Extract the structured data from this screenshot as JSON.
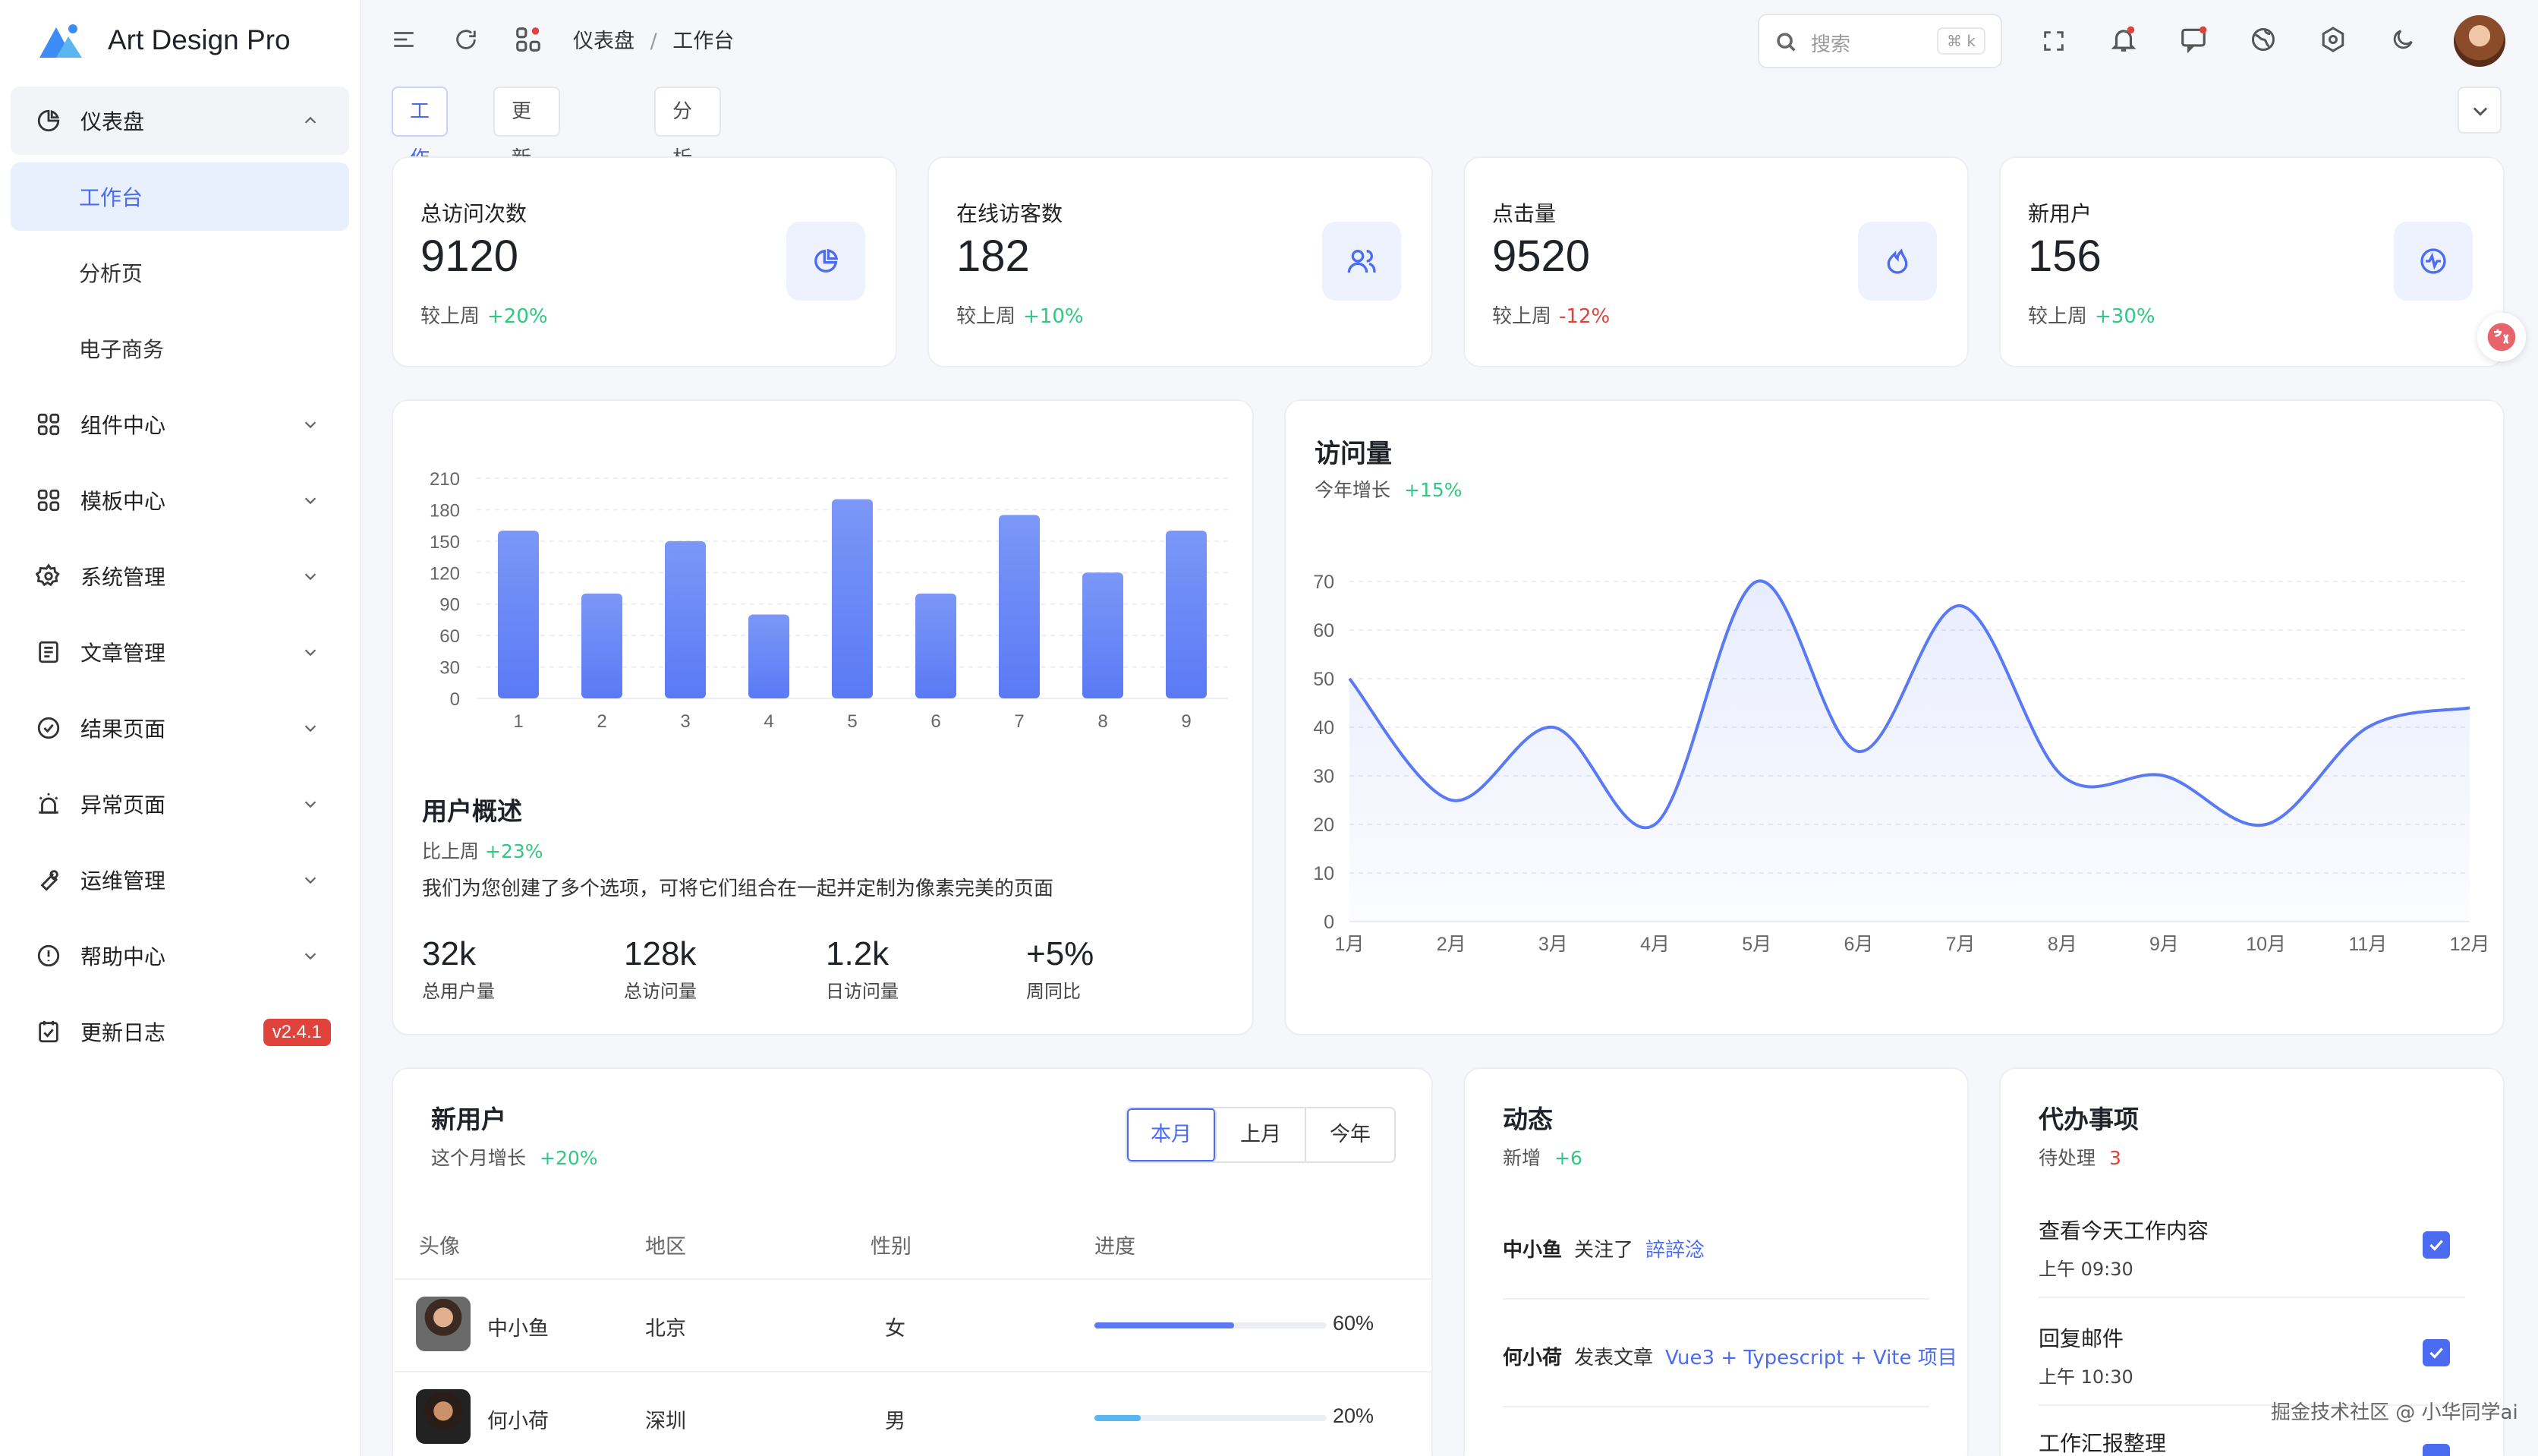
{
  "app": {
    "name": "Art Design Pro",
    "accent": "#4b6cf1"
  },
  "sidebar": {
    "items": [
      {
        "label": "仪表盘",
        "icon": "dashboard-icon",
        "open": true,
        "children": [
          {
            "label": "工作台",
            "active": true
          },
          {
            "label": "分析页"
          },
          {
            "label": "电子商务"
          }
        ]
      },
      {
        "label": "组件中心",
        "icon": "grid-icon"
      },
      {
        "label": "模板中心",
        "icon": "template-icon"
      },
      {
        "label": "系统管理",
        "icon": "gear-icon"
      },
      {
        "label": "文章管理",
        "icon": "article-icon"
      },
      {
        "label": "结果页面",
        "icon": "check-circle-icon"
      },
      {
        "label": "异常页面",
        "icon": "alarm-icon"
      },
      {
        "label": "运维管理",
        "icon": "wrench-icon"
      },
      {
        "label": "帮助中心",
        "icon": "help-icon"
      },
      {
        "label": "更新日志",
        "icon": "log-icon",
        "badge": "v2.4.1"
      }
    ]
  },
  "topbar": {
    "breadcrumb": [
      "仪表盘",
      "工作台"
    ],
    "separator": "/",
    "search": {
      "placeholder": "搜索",
      "shortcut": "⌘ k"
    }
  },
  "tabs": [
    {
      "label": "工作台",
      "active": true,
      "closable": false
    },
    {
      "label": "更新日志",
      "closable": true
    },
    {
      "label": "分析页",
      "closable": true
    }
  ],
  "stats": [
    {
      "label": "总访问次数",
      "value": "9120",
      "compare_label": "较上周",
      "delta": "+20%",
      "trend": "up",
      "icon": "pie-chart-icon"
    },
    {
      "label": "在线访客数",
      "value": "182",
      "compare_label": "较上周",
      "delta": "+10%",
      "trend": "up",
      "icon": "users-icon"
    },
    {
      "label": "点击量",
      "value": "9520",
      "compare_label": "较上周",
      "delta": "-12%",
      "trend": "down",
      "icon": "flame-icon"
    },
    {
      "label": "新用户",
      "value": "156",
      "compare_label": "较上周",
      "delta": "+30%",
      "trend": "up",
      "icon": "activity-icon"
    }
  ],
  "overview": {
    "title": "用户概述",
    "compare_label": "比上周",
    "delta": "+23%",
    "description": "我们为您创建了多个选项，可将它们组合在一起并定制为像素完美的页面",
    "metrics": [
      {
        "value": "32k",
        "label": "总用户量"
      },
      {
        "value": "128k",
        "label": "总访问量"
      },
      {
        "value": "1.2k",
        "label": "日访问量"
      },
      {
        "value": "+5%",
        "label": "周同比"
      }
    ]
  },
  "visits": {
    "title": "访问量",
    "sub_label": "今年增长",
    "delta": "+15%"
  },
  "chart_data": [
    {
      "type": "bar",
      "title": "",
      "categories": [
        "1",
        "2",
        "3",
        "4",
        "5",
        "6",
        "7",
        "8",
        "9"
      ],
      "values": [
        160,
        100,
        150,
        80,
        190,
        100,
        175,
        120,
        160
      ],
      "yticks": [
        0,
        30,
        60,
        90,
        120,
        150,
        180,
        210
      ],
      "ylim": [
        0,
        210
      ],
      "grid": true,
      "color": "#5a7af5"
    },
    {
      "type": "area",
      "title": "访问量",
      "categories": [
        "1月",
        "2月",
        "3月",
        "4月",
        "5月",
        "6月",
        "7月",
        "8月",
        "9月",
        "10月",
        "11月",
        "12月"
      ],
      "values": [
        50,
        25,
        40,
        20,
        70,
        35,
        65,
        30,
        30,
        20,
        40,
        44
      ],
      "yticks": [
        0,
        10,
        20,
        30,
        40,
        50,
        60,
        70
      ],
      "ylim": [
        0,
        70
      ],
      "grid": true,
      "color": "#5a7af5"
    }
  ],
  "new_users": {
    "title": "新用户",
    "sub_label": "这个月增长",
    "delta": "+20%",
    "periods": [
      "本月",
      "上月",
      "今年"
    ],
    "active_period": "本月",
    "columns": [
      "头像",
      "地区",
      "性别",
      "进度"
    ],
    "rows": [
      {
        "name": "中小鱼",
        "region": "北京",
        "gender": "女",
        "progress": 60,
        "progress_label": "60%",
        "color": "#5a7af5"
      },
      {
        "name": "何小荷",
        "region": "深圳",
        "gender": "男",
        "progress": 20,
        "progress_label": "20%",
        "color": "#5ab6f0"
      }
    ]
  },
  "activity": {
    "title": "动态",
    "sub_label": "新增",
    "delta": "+6",
    "items": [
      {
        "user": "中小鱼",
        "action": "关注了",
        "target": "誶誶淰"
      },
      {
        "user": "何小荷",
        "action": "发表文章",
        "target": "Vue3 + Typescript + Vite 项目"
      }
    ]
  },
  "todo": {
    "title": "代办事项",
    "sub_label": "待处理",
    "count": "3",
    "items": [
      {
        "title": "查看今天工作内容",
        "time": "上午 09:30",
        "done": true
      },
      {
        "title": "回复邮件",
        "time": "上午 10:30",
        "done": true
      },
      {
        "title": "工作汇报整理",
        "time": "",
        "done": false
      }
    ]
  },
  "watermark": "掘金技术社区 @ 小华同学ai"
}
